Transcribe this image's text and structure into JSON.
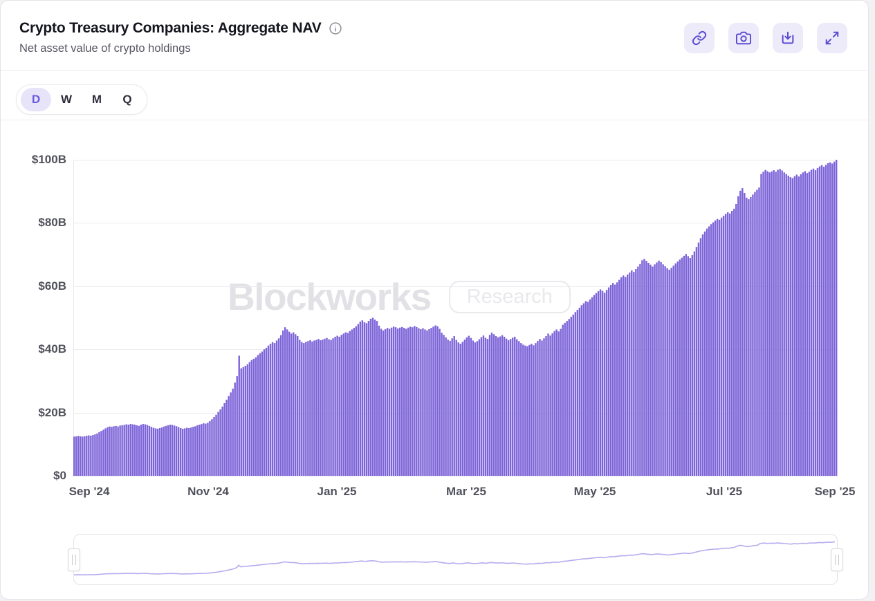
{
  "header": {
    "title": "Crypto Treasury Companies: Aggregate NAV",
    "subtitle": "Net asset value of crypto holdings",
    "info_icon": "info-circle-icon",
    "actions": [
      {
        "name": "copy-link",
        "icon": "link-icon"
      },
      {
        "name": "screenshot",
        "icon": "camera-icon"
      },
      {
        "name": "export-image",
        "icon": "download-tray-icon"
      },
      {
        "name": "fullscreen",
        "icon": "expand-icon"
      }
    ]
  },
  "range_selector": {
    "options": [
      "D",
      "W",
      "M",
      "Q"
    ],
    "selected": "D"
  },
  "watermark": {
    "brand": "Blockworks",
    "badge": "Research"
  },
  "colors": {
    "bar": "#7d64d8",
    "navigator_line": "#b6abee",
    "icon_accent": "#5b4cd2",
    "icon_bg": "#edebfa",
    "selected_range_bg": "#e7e3f9",
    "selected_range_text": "#6a59e0",
    "gridline": "#ebebee",
    "axis_label": "#50515b",
    "watermark": "#e2e2e6"
  },
  "chart_data": {
    "type": "bar",
    "title": "Crypto Treasury Companies: Aggregate NAV",
    "subtitle": "Net asset value of crypto holdings",
    "unit": "USD billions",
    "frequency": "daily",
    "x_start": "2024-09-01",
    "x_end": "2025-09-01",
    "ylim": [
      0,
      100
    ],
    "grid": "horizontal",
    "legend": "none",
    "yticks": [
      {
        "label": "$100B",
        "value": 100
      },
      {
        "label": "$80B",
        "value": 80
      },
      {
        "label": "$60B",
        "value": 60
      },
      {
        "label": "$40B",
        "value": 40
      },
      {
        "label": "$20B",
        "value": 20
      },
      {
        "label": "$0",
        "value": 0
      }
    ],
    "xticklabels": [
      "Sep '24",
      "Nov '24",
      "Jan '25",
      "Mar '25",
      "May '25",
      "Jul '25",
      "Sep '25"
    ],
    "series": [
      {
        "name": "Aggregate NAV ($B)",
        "color": "#7d64d8",
        "values": [
          12.4,
          12.5,
          12.6,
          12.5,
          12.4,
          12.5,
          12.7,
          12.8,
          12.7,
          12.9,
          13.1,
          13.4,
          13.8,
          14.2,
          14.6,
          15.0,
          15.4,
          15.6,
          15.5,
          15.7,
          15.8,
          15.6,
          15.9,
          16.0,
          16.1,
          16.3,
          16.2,
          16.4,
          16.3,
          16.2,
          16.0,
          15.8,
          16.2,
          16.4,
          16.3,
          16.1,
          15.8,
          15.5,
          15.2,
          15.0,
          14.9,
          15.1,
          15.3,
          15.6,
          15.8,
          16.0,
          16.2,
          16.1,
          15.9,
          15.7,
          15.4,
          15.1,
          14.9,
          15.0,
          15.2,
          15.1,
          15.3,
          15.5,
          15.7,
          16.0,
          16.2,
          16.4,
          16.6,
          16.5,
          16.8,
          17.3,
          17.9,
          18.6,
          19.3,
          20.2,
          21.0,
          21.9,
          23.0,
          24.1,
          25.2,
          26.4,
          27.6,
          29.5,
          31.5,
          38.0,
          34.0,
          34.4,
          34.8,
          35.3,
          36.0,
          36.6,
          37.0,
          37.5,
          38.2,
          38.8,
          39.3,
          40.0,
          40.5,
          41.2,
          41.8,
          42.3,
          42.0,
          42.8,
          43.5,
          44.5,
          46.0,
          47.0,
          46.3,
          45.6,
          45.0,
          45.4,
          44.8,
          44.2,
          43.0,
          42.3,
          42.0,
          42.4,
          42.6,
          42.9,
          42.5,
          42.8,
          43.0,
          43.3,
          42.9,
          43.1,
          43.4,
          43.6,
          43.2,
          43.0,
          43.5,
          44.0,
          44.3,
          44.0,
          44.6,
          45.0,
          45.4,
          45.2,
          45.8,
          46.3,
          46.8,
          47.3,
          48.0,
          48.8,
          49.2,
          48.6,
          48.3,
          49.0,
          49.7,
          50.0,
          49.4,
          49.0,
          47.5,
          46.5,
          46.0,
          46.4,
          46.8,
          46.5,
          46.9,
          47.2,
          47.0,
          46.6,
          46.9,
          47.1,
          46.8,
          46.5,
          46.9,
          47.2,
          47.0,
          47.4,
          47.1,
          46.7,
          46.4,
          46.7,
          46.3,
          46.0,
          46.4,
          46.8,
          47.2,
          47.6,
          47.3,
          46.5,
          45.3,
          44.6,
          43.8,
          43.1,
          42.7,
          43.5,
          44.2,
          43.0,
          42.2,
          41.8,
          42.4,
          43.1,
          43.8,
          44.3,
          43.6,
          42.8,
          42.2,
          42.6,
          43.2,
          43.9,
          44.4,
          43.7,
          43.3,
          44.6,
          45.3,
          44.8,
          44.2,
          43.8,
          44.1,
          44.5,
          44.0,
          43.4,
          42.9,
          43.3,
          43.7,
          44.0,
          43.2,
          42.6,
          42.0,
          41.5,
          41.2,
          41.0,
          41.4,
          41.8,
          41.3,
          42.0,
          42.7,
          43.3,
          42.8,
          43.5,
          44.2,
          45.0,
          44.4,
          45.1,
          45.8,
          46.3,
          45.7,
          46.5,
          47.8,
          48.4,
          49.0,
          49.6,
          50.3,
          51.0,
          51.8,
          52.5,
          53.2,
          54.0,
          54.6,
          55.3,
          55.0,
          55.8,
          56.5,
          57.2,
          57.8,
          58.4,
          59.0,
          58.5,
          57.9,
          58.8,
          59.6,
          60.4,
          61.0,
          60.5,
          61.2,
          62.0,
          62.8,
          63.4,
          62.9,
          63.7,
          64.3,
          65.0,
          64.5,
          65.4,
          66.2,
          67.0,
          68.2,
          68.6,
          68.0,
          67.4,
          66.8,
          66.2,
          66.9,
          67.5,
          68.1,
          67.6,
          66.9,
          66.3,
          65.7,
          65.2,
          65.8,
          66.5,
          67.2,
          67.8,
          68.4,
          69.0,
          69.6,
          70.2,
          69.5,
          68.9,
          69.8,
          71.0,
          72.4,
          73.8,
          75.2,
          76.4,
          77.3,
          78.2,
          78.9,
          79.6,
          80.2,
          80.8,
          81.3,
          81.0,
          81.7,
          82.3,
          82.9,
          83.4,
          83.0,
          83.8,
          84.5,
          86.0,
          88.5,
          90.2,
          91.0,
          89.5,
          88.0,
          87.5,
          88.2,
          89.0,
          89.8,
          90.5,
          91.2,
          95.5,
          96.2,
          96.8,
          96.4,
          96.0,
          96.3,
          96.7,
          96.2,
          96.8,
          97.1,
          96.6,
          96.0,
          95.5,
          95.0,
          94.5,
          94.2,
          94.8,
          95.3,
          94.7,
          95.4,
          96.0,
          96.4,
          95.8,
          96.2,
          96.8,
          97.2,
          96.7,
          97.4,
          97.9,
          98.3,
          97.8,
          98.4,
          98.9,
          99.2,
          98.8,
          99.4,
          100.2
        ]
      }
    ]
  },
  "navigator": {
    "handles": 2,
    "line_color": "#b6abee"
  }
}
